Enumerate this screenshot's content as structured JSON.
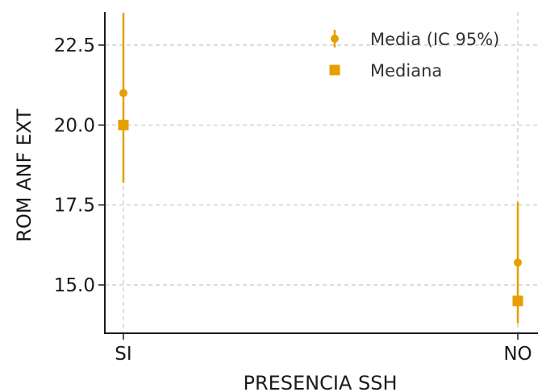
{
  "chart_data": {
    "type": "scatter",
    "title": "",
    "xlabel": "PRESENCIA SSH",
    "ylabel": "ROM ANF EXT",
    "categories": [
      "SI",
      "NO"
    ],
    "ylim": [
      13.5,
      23.5
    ],
    "yticks": [
      "15.0",
      "17.5",
      "20.0",
      "22.5"
    ],
    "grid": true,
    "legend_position": "top-right",
    "series": [
      {
        "name": "Media (IC 95%)",
        "marker": "circle",
        "values": [
          21.0,
          15.7
        ],
        "ci_low": [
          18.2,
          13.8
        ],
        "ci_high": [
          23.5,
          17.6
        ]
      },
      {
        "name": "Mediana",
        "marker": "square",
        "values": [
          20.0,
          14.5
        ]
      }
    ],
    "colors": {
      "series": "#E69F00",
      "axis": "#1a1a1a",
      "grid": "#c8c8c8",
      "text": "#1a1a1a"
    }
  }
}
